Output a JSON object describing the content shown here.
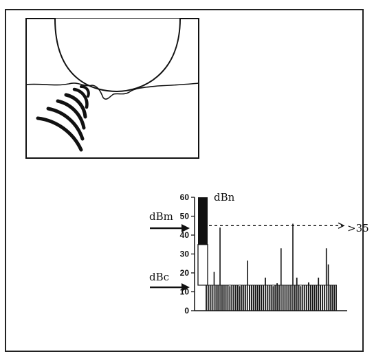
{
  "figure": {
    "panel_top": {
      "description_icon": "bearing-ball-on-surface-with-emission-waves"
    },
    "panel_bottom": {
      "labels": {
        "peak": "dBn",
        "mean": "dBm",
        "carpet": "dBc",
        "threshold_marker": ">35"
      }
    }
  },
  "chart_data": {
    "type": "bar",
    "ylim": [
      0,
      60
    ],
    "yticks": [
      "0",
      "10",
      "20",
      "30",
      "40",
      "50",
      "60"
    ],
    "series": [
      {
        "values": [
          13.5,
          13.5,
          13.5,
          13.5,
          20.5,
          13.5,
          13.5,
          44,
          13.5,
          13.5,
          13.5,
          13.5,
          13,
          13.5,
          13.5,
          13.5,
          13.5,
          13,
          13.5,
          13.5,
          13.5,
          26.5,
          13.5,
          13.5,
          13.5,
          13.5,
          13.5,
          13.5,
          13.5,
          13.5,
          17.5,
          13.5,
          13.5,
          13.5,
          13,
          13.5,
          14.5,
          13.5,
          33,
          13.5,
          13.5,
          13.5,
          13.5,
          13.5,
          46,
          13.5,
          17.5,
          13.5,
          13,
          13.5,
          13.5,
          13.5,
          15,
          13.5,
          13.5,
          13.5,
          13.5,
          17.5,
          13.5,
          13.5,
          13.5,
          33,
          24.5,
          13.5,
          13.5,
          13.5,
          13.5
        ]
      }
    ],
    "indicator_bar": {
      "dark_range": [
        35,
        60
      ],
      "light_range": [
        13.5,
        35
      ]
    },
    "threshold_line": 45,
    "grid": false
  }
}
